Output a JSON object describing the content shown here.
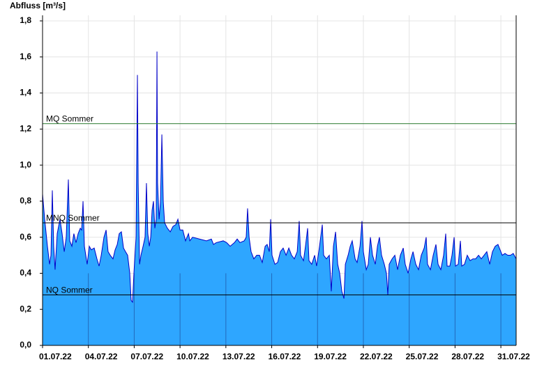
{
  "chart_data": {
    "type": "area",
    "y_axis_label": "Abfluss [m³/s]",
    "color": "#2ea6ff",
    "line_color": "#0000c8",
    "xlim": [
      1,
      32
    ],
    "xticks": [
      {
        "value": 1,
        "label": "01.07.22"
      },
      {
        "value": 4,
        "label": "04.07.22"
      },
      {
        "value": 7,
        "label": "07.07.22"
      },
      {
        "value": 10,
        "label": "10.07.22"
      },
      {
        "value": 13,
        "label": "13.07.22"
      },
      {
        "value": 16,
        "label": "16.07.22"
      },
      {
        "value": 19,
        "label": "19.07.22"
      },
      {
        "value": 22,
        "label": "22.07.22"
      },
      {
        "value": 25,
        "label": "25.07.22"
      },
      {
        "value": 28,
        "label": "28.07.22"
      },
      {
        "value": 31,
        "label": "31.07.22"
      }
    ],
    "ylim": [
      0,
      1.8
    ],
    "yticks": [
      {
        "value": 0,
        "label": "0,0"
      },
      {
        "value": 0.2,
        "label": "0,2"
      },
      {
        "value": 0.4,
        "label": "0,4"
      },
      {
        "value": 0.6,
        "label": "0,6"
      },
      {
        "value": 0.8,
        "label": "0,8"
      },
      {
        "value": 1.0,
        "label": "1,0"
      },
      {
        "value": 1.2,
        "label": "1,2"
      },
      {
        "value": 1.4,
        "label": "1,4"
      },
      {
        "value": 1.6,
        "label": "1,6"
      },
      {
        "value": 1.8,
        "label": "1,8"
      }
    ],
    "grid": true,
    "reference_lines": [
      {
        "label": "MQ Sommer",
        "value": 1.23,
        "color": "#2e7d32"
      },
      {
        "label": "MNQ Sommer",
        "value": 0.68,
        "color": "#000000"
      },
      {
        "label": "NQ Sommer",
        "value": 0.28,
        "color": "#000000"
      }
    ],
    "x": [
      1.0,
      1.14,
      1.32,
      1.46,
      1.55,
      1.64,
      1.73,
      1.82,
      1.96,
      2.14,
      2.28,
      2.42,
      2.55,
      2.69,
      2.78,
      2.92,
      3.05,
      3.19,
      3.33,
      3.47,
      3.56,
      3.65,
      3.74,
      3.92,
      4.06,
      4.19,
      4.38,
      4.56,
      4.7,
      4.84,
      5.02,
      5.16,
      5.29,
      5.43,
      5.61,
      5.75,
      5.89,
      6.02,
      6.16,
      6.3,
      6.43,
      6.57,
      6.71,
      6.8,
      6.89,
      6.98,
      7.12,
      7.21,
      7.26,
      7.35,
      7.44,
      7.58,
      7.71,
      7.8,
      7.89,
      7.99,
      8.08,
      8.17,
      8.26,
      8.35,
      8.44,
      8.49,
      8.53,
      8.63,
      8.72,
      8.81,
      8.9,
      8.99,
      9.17,
      9.36,
      9.54,
      9.72,
      9.86,
      10.0,
      10.18,
      10.36,
      10.55,
      10.64,
      10.82,
      11.27,
      11.73,
      12.05,
      12.19,
      12.37,
      12.83,
      13.05,
      13.28,
      13.56,
      13.74,
      13.92,
      14.2,
      14.33,
      14.42,
      14.52,
      14.65,
      14.83,
      15.02,
      15.2,
      15.38,
      15.57,
      15.7,
      15.84,
      15.93,
      16.02,
      16.21,
      16.39,
      16.57,
      16.75,
      16.94,
      17.12,
      17.3,
      17.48,
      17.67,
      17.8,
      17.89,
      18.08,
      18.21,
      18.35,
      18.44,
      18.62,
      18.81,
      18.94,
      19.13,
      19.31,
      19.4,
      19.58,
      19.77,
      19.9,
      20.04,
      20.18,
      20.32,
      20.45,
      20.59,
      20.73,
      20.82,
      21.0,
      21.14,
      21.27,
      21.46,
      21.59,
      21.78,
      21.91,
      22.0,
      22.19,
      22.32,
      22.46,
      22.6,
      22.78,
      22.92,
      23.05,
      23.19,
      23.37,
      23.51,
      23.6,
      23.69,
      23.88,
      24.06,
      24.24,
      24.42,
      24.61,
      24.74,
      24.93,
      25.11,
      25.25,
      25.43,
      25.61,
      25.79,
      25.98,
      26.11,
      26.2,
      26.39,
      26.57,
      26.75,
      26.89,
      27.07,
      27.25,
      27.39,
      27.48,
      27.66,
      27.8,
      27.94,
      28.03,
      28.21,
      28.35,
      28.44,
      28.62,
      28.8,
      28.99,
      29.17,
      29.35,
      29.54,
      29.72,
      29.9,
      30.08,
      30.27,
      30.45,
      30.63,
      30.81,
      30.95,
      31.09,
      31.27,
      31.45,
      31.63,
      31.81,
      32.0
    ],
    "values": [
      0.84,
      0.7,
      0.55,
      0.45,
      0.5,
      0.86,
      0.55,
      0.42,
      0.62,
      0.7,
      0.62,
      0.52,
      0.6,
      0.92,
      0.58,
      0.55,
      0.62,
      0.57,
      0.62,
      0.65,
      0.64,
      0.8,
      0.55,
      0.45,
      0.55,
      0.53,
      0.54,
      0.48,
      0.44,
      0.5,
      0.6,
      0.64,
      0.52,
      0.5,
      0.48,
      0.53,
      0.56,
      0.62,
      0.63,
      0.54,
      0.52,
      0.5,
      0.4,
      0.25,
      0.24,
      0.4,
      0.6,
      1.5,
      0.9,
      0.45,
      0.5,
      0.55,
      0.6,
      0.9,
      0.62,
      0.55,
      0.6,
      0.75,
      0.8,
      0.65,
      0.7,
      1.63,
      0.9,
      0.7,
      0.8,
      1.17,
      0.8,
      0.68,
      0.65,
      0.63,
      0.66,
      0.67,
      0.7,
      0.64,
      0.64,
      0.58,
      0.62,
      0.58,
      0.6,
      0.59,
      0.58,
      0.59,
      0.56,
      0.57,
      0.58,
      0.57,
      0.55,
      0.57,
      0.59,
      0.57,
      0.58,
      0.6,
      0.76,
      0.6,
      0.52,
      0.48,
      0.5,
      0.5,
      0.46,
      0.55,
      0.56,
      0.52,
      0.7,
      0.5,
      0.45,
      0.46,
      0.52,
      0.54,
      0.5,
      0.54,
      0.5,
      0.48,
      0.52,
      0.69,
      0.5,
      0.47,
      0.55,
      0.65,
      0.47,
      0.45,
      0.5,
      0.44,
      0.55,
      0.67,
      0.5,
      0.48,
      0.5,
      0.3,
      0.55,
      0.63,
      0.45,
      0.4,
      0.3,
      0.26,
      0.45,
      0.5,
      0.55,
      0.58,
      0.48,
      0.46,
      0.55,
      0.69,
      0.52,
      0.42,
      0.45,
      0.6,
      0.5,
      0.45,
      0.55,
      0.6,
      0.5,
      0.45,
      0.4,
      0.28,
      0.45,
      0.48,
      0.5,
      0.42,
      0.5,
      0.54,
      0.45,
      0.4,
      0.48,
      0.52,
      0.45,
      0.42,
      0.5,
      0.54,
      0.6,
      0.45,
      0.42,
      0.5,
      0.56,
      0.45,
      0.42,
      0.5,
      0.62,
      0.44,
      0.44,
      0.5,
      0.6,
      0.44,
      0.45,
      0.58,
      0.44,
      0.45,
      0.5,
      0.47,
      0.48,
      0.48,
      0.5,
      0.48,
      0.5,
      0.52,
      0.45,
      0.52,
      0.55,
      0.56,
      0.53,
      0.5,
      0.51,
      0.5,
      0.5,
      0.51,
      0.48
    ]
  }
}
